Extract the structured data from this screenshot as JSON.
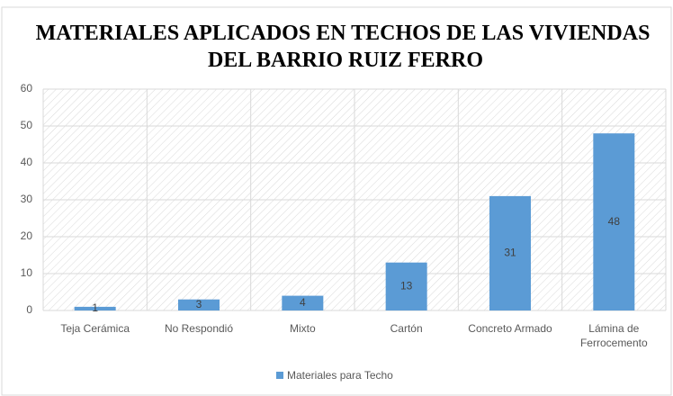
{
  "chart_data": {
    "type": "bar",
    "title": "MATERIALES APLICADOS EN TECHOS DE LAS VIVIENDAS DEL BARRIO RUIZ FERRO",
    "categories": [
      "Teja Cerámica",
      "No Respondió",
      "Mixto",
      "Cartón",
      "Concreto Armado",
      "Lámina de Ferrocemento"
    ],
    "series": [
      {
        "name": "Materiales para Techo",
        "color": "#5b9bd5",
        "values": [
          1,
          3,
          4,
          13,
          31,
          48
        ]
      }
    ],
    "ylim": [
      0,
      60
    ],
    "yticks": [
      0,
      10,
      20,
      30,
      40,
      50,
      60
    ],
    "grid": true,
    "legend": "bottom"
  }
}
